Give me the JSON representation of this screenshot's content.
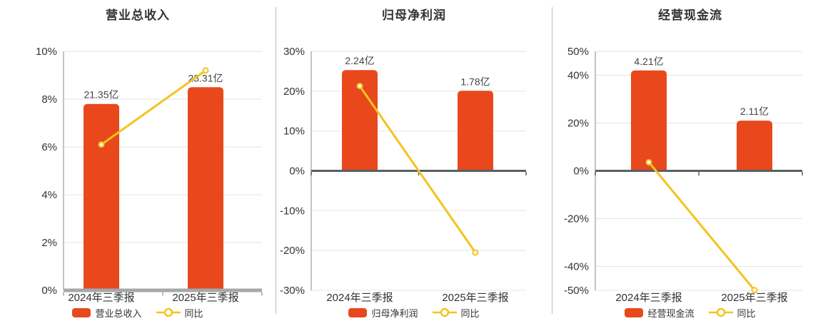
{
  "colors": {
    "bar": "#e8481c",
    "line": "#f3c41d",
    "marker_fill": "#fffbe8",
    "grid": "#e4e4e4",
    "y_axis_line": "#aeb1b6",
    "baseline_axis": "#a5a8ad",
    "zero_axis": "#596066",
    "text": "#333333",
    "value_label": "#454545"
  },
  "chart_data": [
    {
      "type": "bar+line",
      "title": "营业总收入",
      "categories": [
        "2024年三季报",
        "2025年三季报"
      ],
      "bar_series": {
        "name": "营业总收入",
        "value_labels": [
          "21.35亿",
          "23.31亿"
        ],
        "plotted_axis_pct": [
          7.8,
          8.5
        ]
      },
      "line_series": {
        "name": "同比",
        "values_pct": [
          6.1,
          9.2
        ]
      },
      "y_ticks_pct": [
        10,
        8,
        6,
        4,
        2,
        0
      ],
      "ylim_pct": [
        0,
        10
      ],
      "grid": true,
      "legend_position": "bottom"
    },
    {
      "type": "bar+line",
      "title": "归母净利润",
      "categories": [
        "2024年三季报",
        "2025年三季报"
      ],
      "bar_series": {
        "name": "归母净利润",
        "value_labels": [
          "2.24亿",
          "1.78亿"
        ],
        "plotted_axis_pct": [
          25.3,
          20.1
        ]
      },
      "line_series": {
        "name": "同比",
        "values_pct": [
          21.3,
          -20.5
        ]
      },
      "y_ticks_pct": [
        30,
        20,
        10,
        0,
        -10,
        -20,
        -30
      ],
      "ylim_pct": [
        -30,
        30
      ],
      "grid": true,
      "legend_position": "bottom"
    },
    {
      "type": "bar+line",
      "title": "经营现金流",
      "categories": [
        "2024年三季报",
        "2025年三季报"
      ],
      "bar_series": {
        "name": "经营现金流",
        "value_labels": [
          "4.21亿",
          "2.11亿"
        ],
        "plotted_axis_pct": [
          42.0,
          21.0
        ]
      },
      "line_series": {
        "name": "同比",
        "values_pct": [
          3.6,
          -49.9
        ]
      },
      "y_ticks_pct": [
        50,
        40,
        20,
        0,
        -20,
        -40,
        -50
      ],
      "ylim_pct": [
        -50,
        50
      ],
      "grid": true,
      "legend_position": "bottom"
    }
  ]
}
